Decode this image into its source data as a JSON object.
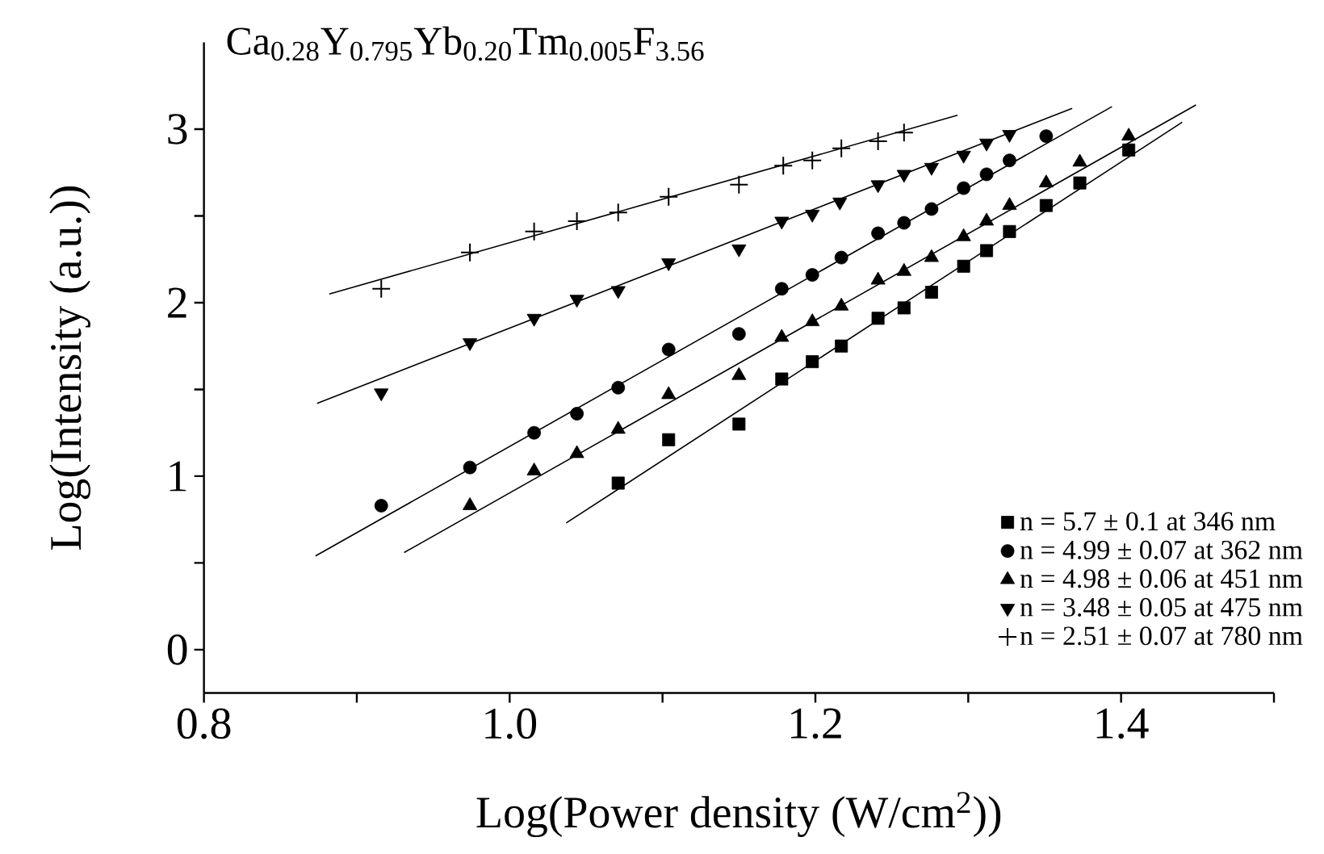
{
  "chart_data": {
    "type": "scatter",
    "title": "Ca$_{0.28}$Y$_{0.795}$Yb$_{0.20}$Tm$_{0.005}$F$_{3.56}$",
    "xlabel": "Log(Power density (W/cm$^{2}$))",
    "ylabel": "Log(Intensity (a.u.))",
    "xlim": [
      0.8,
      1.5
    ],
    "ylim": [
      -0.25,
      3.5
    ],
    "xticks": [
      {
        "value": 0.8,
        "label": "0.8"
      },
      {
        "value": 0.9,
        "label": null
      },
      {
        "value": 1.0,
        "label": "1.0"
      },
      {
        "value": 1.1,
        "label": null
      },
      {
        "value": 1.2,
        "label": "1.2"
      },
      {
        "value": 1.3,
        "label": null
      },
      {
        "value": 1.4,
        "label": "1.4"
      },
      {
        "value": 1.5,
        "label": null
      }
    ],
    "yticks": [
      0,
      {
        "value": 0.5,
        "label": null
      },
      1,
      {
        "value": 1.5,
        "label": null
      },
      2,
      {
        "value": 2.5,
        "label": null
      },
      3
    ],
    "legend": "bottom right",
    "line_style": "solid",
    "series": [
      {
        "name": "n = 5.7 ± 0.1  at 346 nm",
        "marker": "square",
        "color": "#000000",
        "x": [
          1.071,
          1.104,
          1.15,
          1.178,
          1.198,
          1.217,
          1.241,
          1.258,
          1.276,
          1.297,
          1.312,
          1.327,
          1.351,
          1.373,
          1.405
        ],
        "values": [
          0.96,
          1.21,
          1.3,
          1.56,
          1.66,
          1.75,
          1.91,
          1.97,
          2.06,
          2.21,
          2.3,
          2.41,
          2.56,
          2.69,
          2.88
        ]
      },
      {
        "name": "n = 4.99 ± 0.07  at 362 nm",
        "marker": "circle",
        "color": "#000000",
        "x": [
          0.916,
          0.974,
          1.016,
          1.044,
          1.071,
          1.104,
          1.15,
          1.178,
          1.198,
          1.217,
          1.241,
          1.258,
          1.276,
          1.297,
          1.312,
          1.327,
          1.351
        ],
        "values": [
          0.83,
          1.05,
          1.25,
          1.36,
          1.51,
          1.73,
          1.82,
          2.08,
          2.16,
          2.26,
          2.4,
          2.46,
          2.54,
          2.66,
          2.74,
          2.82,
          2.96
        ]
      },
      {
        "name": "n = 4.98 ± 0.06  at 451 nm",
        "marker": "triangle",
        "color": "#000000",
        "x": [
          0.974,
          1.016,
          1.044,
          1.071,
          1.104,
          1.15,
          1.178,
          1.198,
          1.217,
          1.241,
          1.258,
          1.276,
          1.297,
          1.312,
          1.327,
          1.351,
          1.373,
          1.405
        ],
        "values": [
          0.83,
          1.03,
          1.13,
          1.27,
          1.47,
          1.58,
          1.8,
          1.89,
          1.98,
          2.13,
          2.18,
          2.26,
          2.38,
          2.47,
          2.56,
          2.69,
          2.81,
          2.96
        ]
      },
      {
        "name": "n = 3.48 ± 0.05  at 475 nm",
        "marker": "triangle-down",
        "color": "#000000",
        "x": [
          0.916,
          0.974,
          1.016,
          1.044,
          1.071,
          1.104,
          1.15,
          1.178,
          1.198,
          1.216,
          1.241,
          1.258,
          1.276,
          1.297,
          1.312,
          1.327
        ],
        "values": [
          1.48,
          1.77,
          1.91,
          2.02,
          2.07,
          2.23,
          2.31,
          2.47,
          2.51,
          2.58,
          2.68,
          2.74,
          2.78,
          2.85,
          2.92,
          2.97
        ]
      },
      {
        "name": "n = 2.51 ± 0.07  at 780 nm",
        "marker": "cross",
        "color": "#000000",
        "x": [
          0.916,
          0.974,
          1.016,
          1.044,
          1.071,
          1.104,
          1.15,
          1.179,
          1.198,
          1.217,
          1.241,
          1.258
        ],
        "values": [
          2.08,
          2.29,
          2.41,
          2.47,
          2.52,
          2.61,
          2.68,
          2.79,
          2.82,
          2.89,
          2.93,
          2.98
        ]
      },
      {
        "type": "line",
        "color": "#000000",
        "x": [
          1.037,
          1.44
        ],
        "values": [
          0.73,
          3.04
        ]
      },
      {
        "type": "line",
        "color": "#000000",
        "x": [
          0.873,
          1.394
        ],
        "values": [
          0.54,
          3.13
        ]
      },
      {
        "type": "line",
        "color": "#000000",
        "x": [
          0.931,
          1.449
        ],
        "values": [
          0.56,
          3.14
        ]
      },
      {
        "type": "line",
        "color": "#000000",
        "x": [
          0.874,
          1.368
        ],
        "values": [
          1.42,
          3.12
        ]
      },
      {
        "type": "line",
        "color": "#000000",
        "x": [
          0.882,
          1.293
        ],
        "values": [
          2.05,
          3.08
        ]
      }
    ]
  }
}
